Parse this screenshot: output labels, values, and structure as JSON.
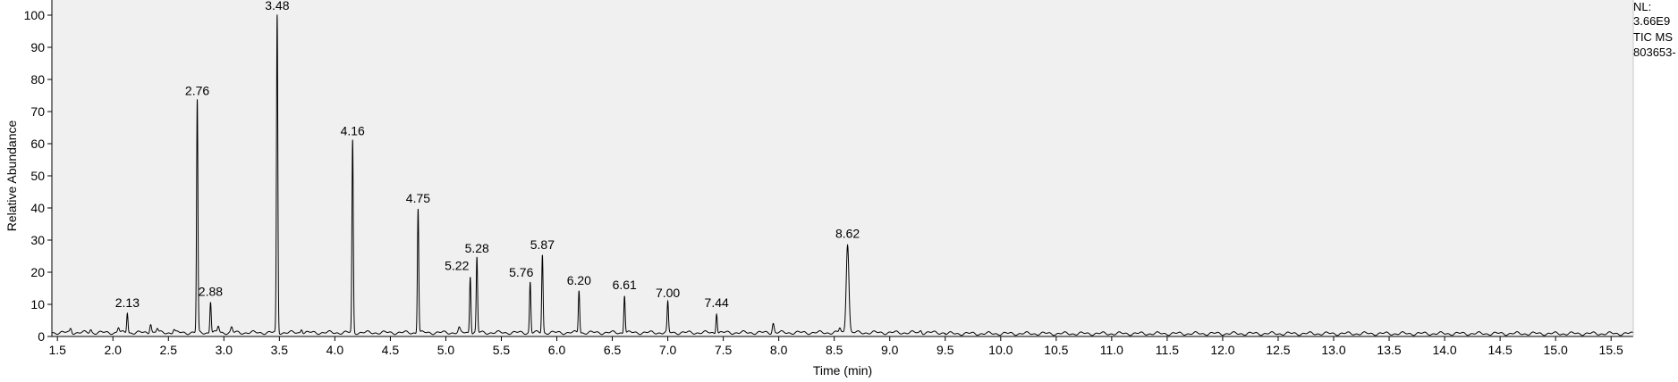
{
  "chart_data": {
    "type": "line",
    "xlabel": "Time (min)",
    "ylabel": "Relative Abundance",
    "xlim": [
      1.45,
      15.7
    ],
    "ylim": [
      0,
      100
    ],
    "xticks": [
      "1.5",
      "2.0",
      "2.5",
      "3.0",
      "3.5",
      "4.0",
      "4.5",
      "5.0",
      "5.5",
      "6.0",
      "6.5",
      "7.0",
      "7.5",
      "8.0",
      "8.5",
      "9.0",
      "9.5",
      "10.0",
      "10.5",
      "11.0",
      "11.5",
      "12.0",
      "12.5",
      "13.0",
      "13.5",
      "14.0",
      "14.5",
      "15.0",
      "15.5"
    ],
    "yticks": [
      "0",
      "10",
      "20",
      "30",
      "40",
      "50",
      "60",
      "70",
      "80",
      "90",
      "100"
    ],
    "grid": false,
    "baseline": 1.2,
    "peaks": [
      {
        "rt": 2.13,
        "height": 7.5,
        "label": "2.13"
      },
      {
        "rt": 2.76,
        "height": 73.5,
        "label": "2.76"
      },
      {
        "rt": 2.88,
        "height": 11,
        "label": "2.88"
      },
      {
        "rt": 3.48,
        "height": 100,
        "label": "3.48"
      },
      {
        "rt": 4.16,
        "height": 61,
        "label": "4.16"
      },
      {
        "rt": 4.75,
        "height": 40,
        "label": "4.75"
      },
      {
        "rt": 5.22,
        "height": 19,
        "label": "5.22"
      },
      {
        "rt": 5.28,
        "height": 24.5,
        "label": "5.28"
      },
      {
        "rt": 5.76,
        "height": 17,
        "label": "5.76"
      },
      {
        "rt": 5.87,
        "height": 25.5,
        "label": "5.87"
      },
      {
        "rt": 6.2,
        "height": 14.5,
        "label": "6.20"
      },
      {
        "rt": 6.61,
        "height": 13,
        "label": "6.61"
      },
      {
        "rt": 7.0,
        "height": 10.5,
        "label": "7.00"
      },
      {
        "rt": 7.44,
        "height": 7.5,
        "label": "7.44"
      },
      {
        "rt": 8.62,
        "height": 29,
        "label": "8.62"
      }
    ],
    "minor_peaks": [
      {
        "rt": 1.62,
        "height": 2.5
      },
      {
        "rt": 1.8,
        "height": 2.2
      },
      {
        "rt": 2.05,
        "height": 2.8
      },
      {
        "rt": 2.34,
        "height": 4.2
      },
      {
        "rt": 2.4,
        "height": 2.5
      },
      {
        "rt": 2.55,
        "height": 2.2
      },
      {
        "rt": 2.95,
        "height": 3.2
      },
      {
        "rt": 3.07,
        "height": 2.8
      },
      {
        "rt": 3.7,
        "height": 2.5
      },
      {
        "rt": 5.12,
        "height": 2.5
      },
      {
        "rt": 7.95,
        "height": 4.2
      },
      {
        "rt": 8.55,
        "height": 2.6
      },
      {
        "rt": 9.28,
        "height": 1.9
      }
    ]
  },
  "side_info": [
    "NL:",
    "3.66E9",
    "TIC  MS",
    "803653-"
  ]
}
